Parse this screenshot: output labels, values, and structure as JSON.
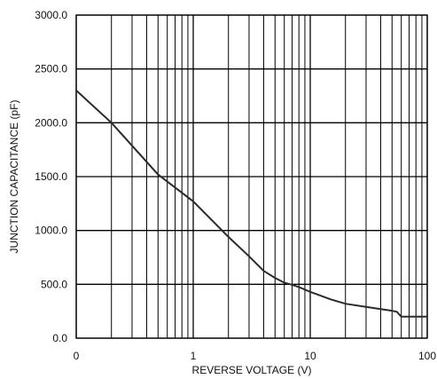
{
  "chart_data": {
    "type": "line",
    "title": "",
    "xlabel": "REVERSE VOLTAGE (V)",
    "ylabel": "JUNCTION CAPACITANCE (pF)",
    "x_scale": "log",
    "xlim": [
      0.1,
      100
    ],
    "ylim": [
      0,
      3000
    ],
    "grid": true,
    "colors": {
      "line": "#2b2b2b",
      "grid": "#000000"
    },
    "x_ticks": [
      {
        "value": 0.1,
        "label": "0"
      },
      {
        "value": 1,
        "label": "1"
      },
      {
        "value": 10,
        "label": "10"
      },
      {
        "value": 100,
        "label": "100"
      }
    ],
    "y_ticks": [
      {
        "value": 0,
        "label": "0.0"
      },
      {
        "value": 500,
        "label": "500.0"
      },
      {
        "value": 1000,
        "label": "1000.0"
      },
      {
        "value": 1500,
        "label": "1500.0"
      },
      {
        "value": 2000,
        "label": "2000.0"
      },
      {
        "value": 2500,
        "label": "2500.0"
      },
      {
        "value": 3000,
        "label": "3000.0"
      }
    ],
    "series": [
      {
        "x": [
          0.1,
          0.2,
          0.5,
          1,
          2,
          3,
          4,
          5,
          6,
          7,
          8,
          10,
          15,
          20,
          30,
          40,
          50,
          55,
          60,
          70,
          80,
          100
        ],
        "y": [
          2300,
          2000,
          1520,
          1270,
          940,
          760,
          625,
          560,
          515,
          495,
          475,
          430,
          360,
          320,
          290,
          270,
          255,
          245,
          200,
          200,
          200,
          200
        ]
      }
    ]
  }
}
